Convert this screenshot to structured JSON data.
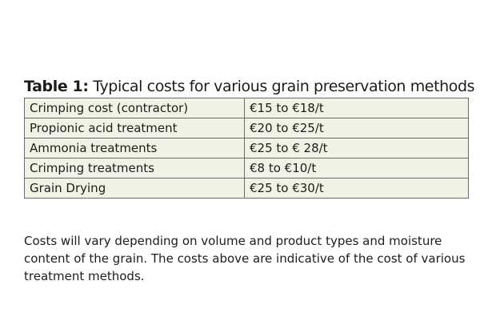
{
  "table": {
    "title_label": "Table 1:",
    "title_text": " Typical costs for various grain preservation methods",
    "rows": [
      {
        "method": "Crimping cost (contractor)",
        "cost": "€15 to €18/t"
      },
      {
        "method": "Propionic acid treatment",
        "cost": "€20 to €25/t"
      },
      {
        "method": "Ammonia treatments",
        "cost": "€25 to € 28/t"
      },
      {
        "method": "Crimping treatments",
        "cost": "€8 to €10/t"
      },
      {
        "method": "Grain Drying",
        "cost": "€25 to €30/t"
      }
    ]
  },
  "footnote": "Costs will vary depending on volume and product types and moisture content of the grain. The costs above are indicative of the cost of various treatment methods.",
  "colors": {
    "cell_background": "#f1f2e6",
    "border": "#6a6a6a",
    "text": "#1c1c1c"
  }
}
